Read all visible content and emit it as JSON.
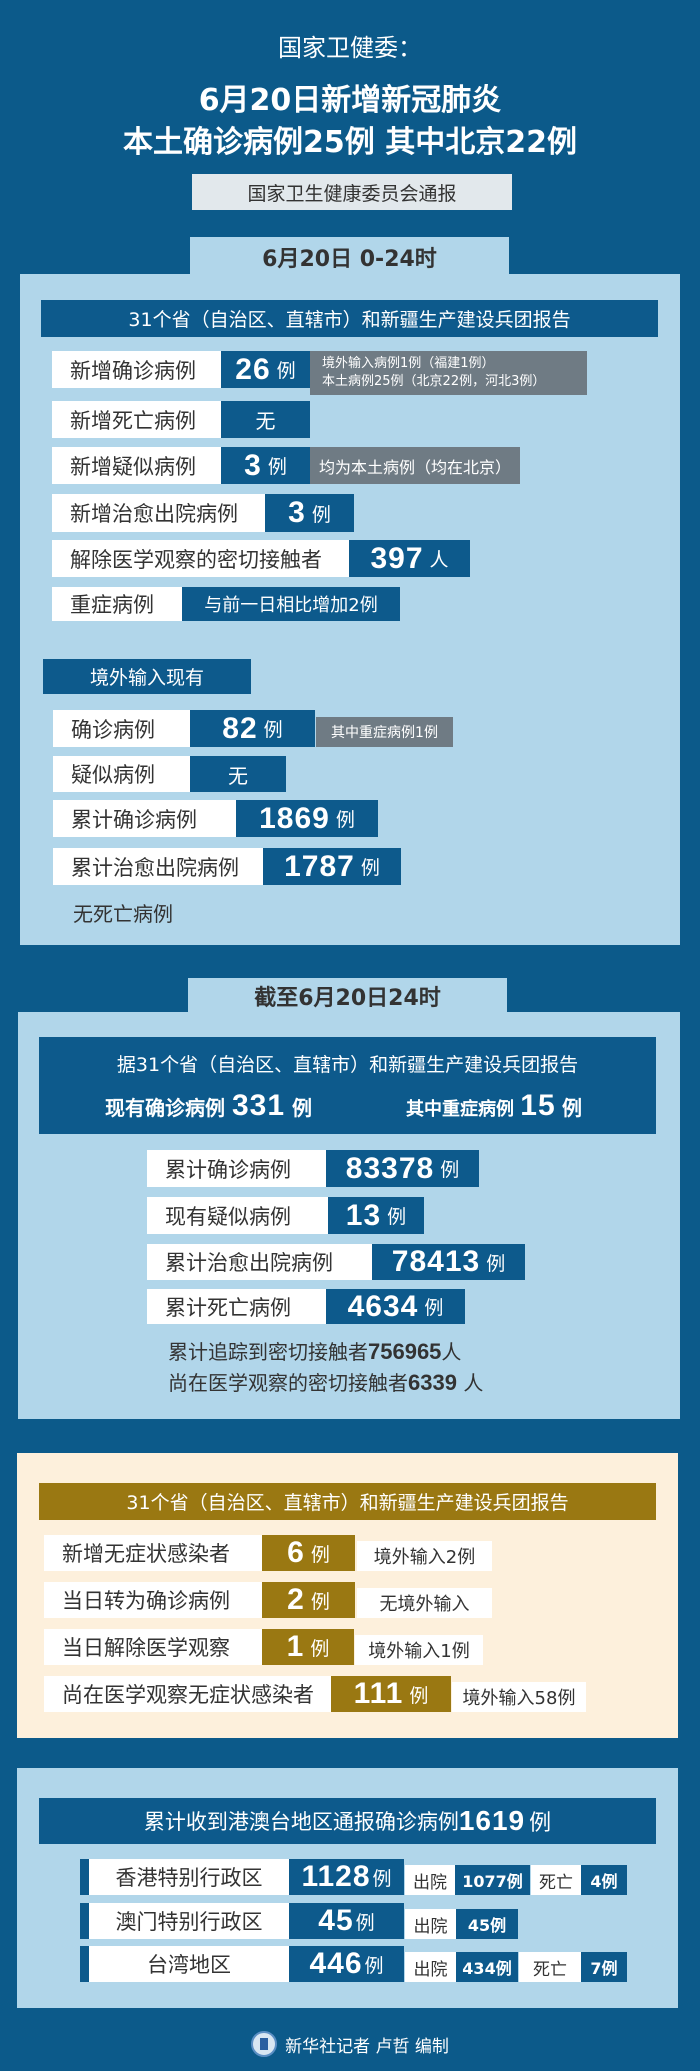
{
  "header": {
    "org": "国家卫健委：",
    "headline1": "6月20日新增新冠肺炎",
    "headline2": "本土确诊病例25例 其中北京22例",
    "source": "国家卫生健康委员会通报"
  },
  "s1": {
    "tab": "6月20日 0-24时",
    "bar": "31个省（自治区、直辖市）和新疆生产建设兵团报告",
    "rows": [
      {
        "label": "新增确诊病例",
        "value": "26",
        "unit": "例",
        "note1": "境外输入病例1例（福建1例）",
        "note2": "本土病例25例（北京22例，河北3例）"
      },
      {
        "label": "新增死亡病例",
        "value": "无"
      },
      {
        "label": "新增疑似病例",
        "value": "3",
        "unit": "例",
        "note1": "均为本土病例（均在北京）"
      },
      {
        "label": "新增治愈出院病例",
        "value": "3",
        "unit": "例"
      },
      {
        "label": "解除医学观察的密切接触者",
        "value": "397",
        "unit": "人"
      },
      {
        "label": "重症病例",
        "value": "与前一日相比增加2例"
      }
    ],
    "imported_title": "境外输入现有",
    "imported": [
      {
        "label": "确诊病例",
        "value": "82",
        "unit": "例",
        "note": "其中重症病例1例"
      },
      {
        "label": "疑似病例",
        "value": "无"
      },
      {
        "label": "累计确诊病例",
        "value": "1869",
        "unit": "例"
      },
      {
        "label": "累计治愈出院病例",
        "value": "1787",
        "unit": "例"
      }
    ],
    "no_death": "无死亡病例"
  },
  "s2": {
    "tab": "截至6月20日24时",
    "bar": "据31个省（自治区、直辖市）和新疆生产建设兵团报告",
    "current_label": "现有确诊病例",
    "current_value": "331",
    "current_unit": "例",
    "severe_label": "其中重症病例",
    "severe_value": "15",
    "severe_unit": "例",
    "rows": [
      {
        "label": "累计确诊病例",
        "value": "83378",
        "unit": "例"
      },
      {
        "label": "现有疑似病例",
        "value": "13",
        "unit": "例"
      },
      {
        "label": "累计治愈出院病例",
        "value": "78413",
        "unit": "例"
      },
      {
        "label": "累计死亡病例",
        "value": "4634",
        "unit": "例"
      }
    ],
    "line1_text": "累计追踪到密切接触者",
    "line1_value": "756965",
    "line1_unit": "人",
    "line2_text": "尚在医学观察的密切接触者",
    "line2_value": "6339",
    "line2_unit": "人"
  },
  "s3": {
    "bar": "31个省（自治区、直辖市）和新疆生产建设兵团报告",
    "rows": [
      {
        "label": "新增无症状感染者",
        "value": "6",
        "unit": "例",
        "note": "境外输入2例"
      },
      {
        "label": "当日转为确诊病例",
        "value": "2",
        "unit": "例",
        "note": "无境外输入"
      },
      {
        "label": "当日解除医学观察",
        "value": "1",
        "unit": "例",
        "note": "境外输入1例"
      },
      {
        "label": "尚在医学观察无症状感染者",
        "value": "111",
        "unit": "例",
        "note": "境外输入58例"
      }
    ]
  },
  "s4": {
    "bar_text": "累计收到港澳台地区通报确诊病例",
    "bar_value": "1619",
    "bar_unit": "例",
    "regions": [
      {
        "label": "香港特别行政区",
        "value": "1128",
        "unit": "例",
        "discharged_label": "出院",
        "discharged": "1077例",
        "death_label": "死亡",
        "death": "4例"
      },
      {
        "label": "澳门特别行政区",
        "value": "45",
        "unit": "例",
        "discharged_label": "出院",
        "discharged": "45例"
      },
      {
        "label": "台湾地区",
        "value": "446",
        "unit": "例",
        "discharged_label": "出院",
        "discharged": "434例",
        "death_label": "死亡",
        "death": "7例"
      }
    ]
  },
  "footer": {
    "credit": "新华社记者 卢哲 编制"
  },
  "colors": {
    "background": "#0c5a8a",
    "panel": "#b1d6ea",
    "box": "#0d5a8c",
    "note": "#6f7b84",
    "gold": "#9a7812",
    "beige": "#fdf0dc"
  }
}
